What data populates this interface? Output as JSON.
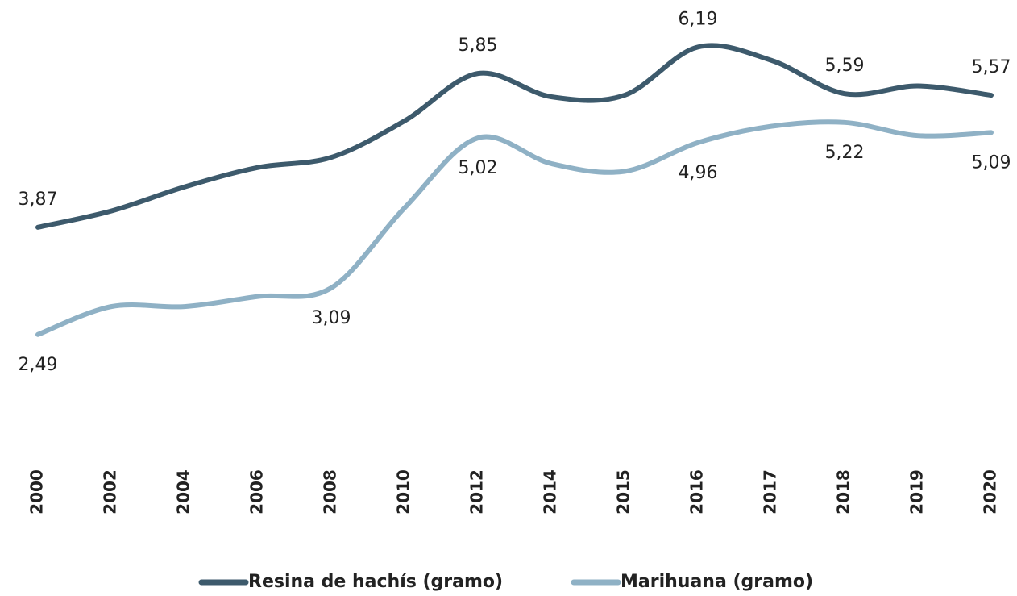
{
  "chart_data": {
    "type": "line",
    "categories": [
      "2000",
      "2002",
      "2004",
      "2006",
      "2008",
      "2010",
      "2012",
      "2014",
      "2015",
      "2016",
      "2017",
      "2018",
      "2019",
      "2020"
    ],
    "series": [
      {
        "name": "Resina de hachís (gramo)",
        "color": "#3d5a6c",
        "values": [
          3.87,
          4.08,
          4.39,
          4.64,
          4.77,
          5.24,
          5.85,
          5.55,
          5.57,
          6.19,
          6.02,
          5.59,
          5.69,
          5.57
        ],
        "value_labels": [
          "3,87",
          null,
          null,
          null,
          null,
          null,
          "5,85",
          null,
          null,
          "6,19",
          null,
          "5,59",
          null,
          "5,57"
        ]
      },
      {
        "name": "Marihuana (gramo)",
        "color": "#8fb1c5",
        "values": [
          2.49,
          2.85,
          2.85,
          2.98,
          3.09,
          4.12,
          5.02,
          4.69,
          4.59,
          4.96,
          5.17,
          5.22,
          5.05,
          5.09
        ],
        "value_labels": [
          "2,49",
          null,
          null,
          null,
          "3,09",
          null,
          "5,02",
          null,
          null,
          "4,96",
          null,
          "5,22",
          null,
          "5,09"
        ]
      }
    ],
    "ylim": [
      2,
      6.5
    ],
    "legend": "bottom"
  }
}
